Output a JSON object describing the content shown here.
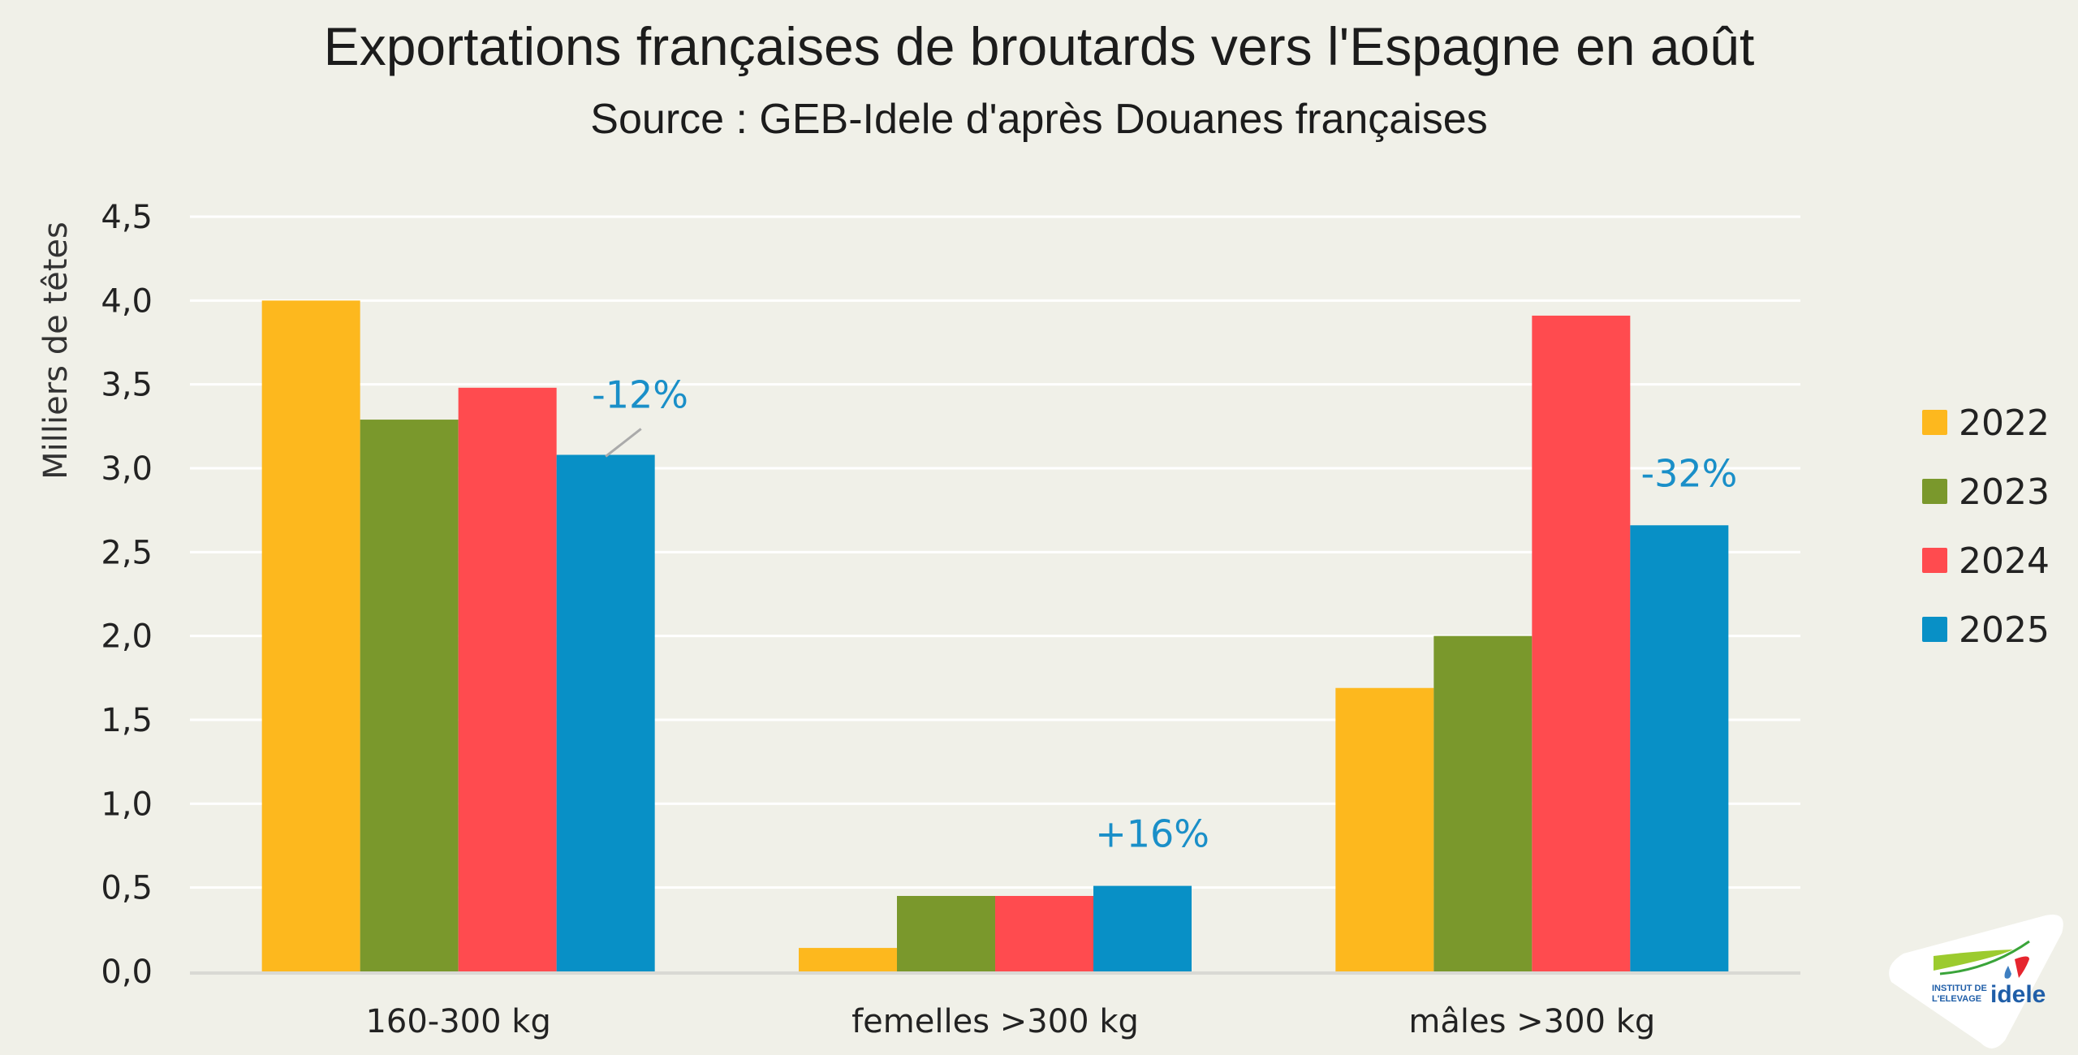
{
  "chart_data": {
    "type": "bar",
    "title": "Exportations françaises de broutards vers l'Espagne en août",
    "subtitle": "Source : GEB-Idele d'après Douanes françaises",
    "xlabel": "",
    "ylabel": "Milliers de têtes",
    "ylim": [
      0,
      4.5
    ],
    "yticks": [
      "0,0",
      "0,5",
      "1,0",
      "1,5",
      "2,0",
      "2,5",
      "3,0",
      "3,5",
      "4,0",
      "4,5"
    ],
    "ytick_values": [
      0,
      0.5,
      1.0,
      1.5,
      2.0,
      2.5,
      3.0,
      3.5,
      4.0,
      4.5
    ],
    "grid": true,
    "legend_position": "right",
    "categories": [
      "160-300 kg",
      "femelles >300 kg",
      "mâles >300 kg"
    ],
    "series": [
      {
        "name": "2022",
        "color": "#fdb81e",
        "values": [
          4.0,
          0.14,
          1.69
        ]
      },
      {
        "name": "2023",
        "color": "#7a982c",
        "values": [
          3.29,
          0.45,
          2.0
        ]
      },
      {
        "name": "2024",
        "color": "#ff4b4f",
        "values": [
          3.48,
          0.45,
          3.91
        ]
      },
      {
        "name": "2025",
        "color": "#0890c6",
        "values": [
          3.08,
          0.51,
          2.66
        ]
      }
    ],
    "annotations": [
      {
        "text": "-12%",
        "category": "160-300 kg",
        "series": "2025",
        "leader_line": true
      },
      {
        "text": "+16%",
        "category": "femelles >300 kg",
        "series": "2025",
        "leader_line": false
      },
      {
        "text": "-32%",
        "category": "mâles >300 kg",
        "series": "2025",
        "leader_line": false
      }
    ],
    "annotation_color": "#1a8fc8"
  },
  "logo": {
    "line1": "INSTITUT DE",
    "line2": "L'ELEVAGE",
    "brand": "idele"
  }
}
